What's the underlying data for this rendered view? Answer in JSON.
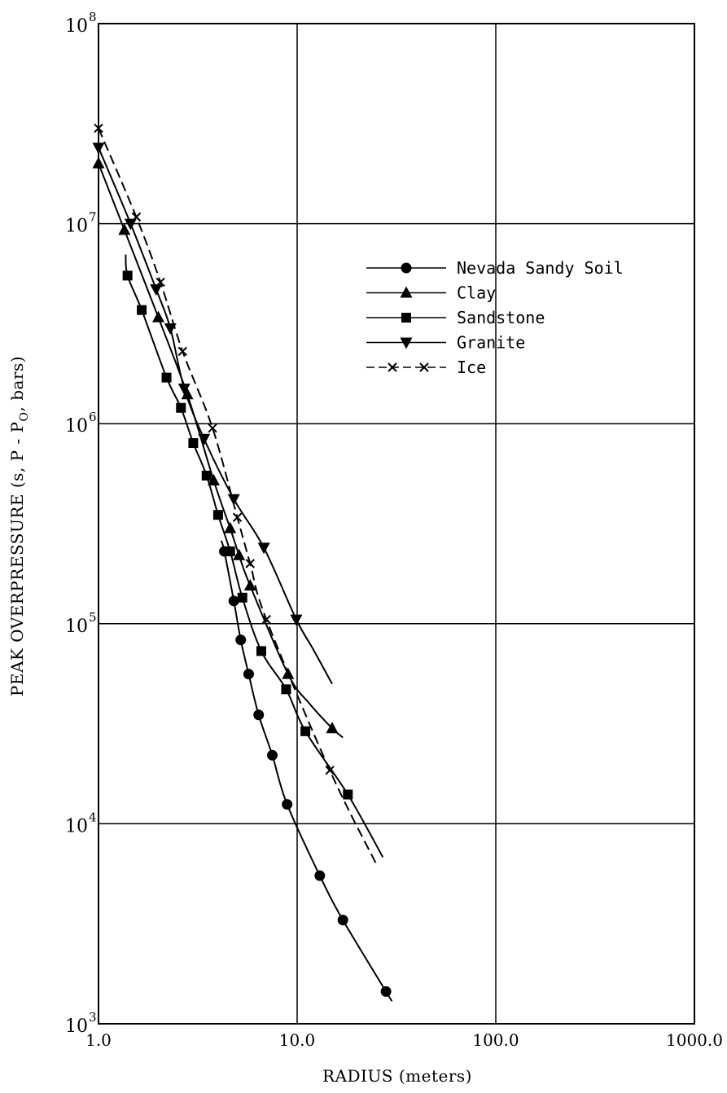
{
  "chart_data": {
    "type": "line",
    "xlabel": "RADIUS (meters)",
    "ylabel": "PEAK OVERPRESSURE (s, P - P",
    "ylabel_sub": "O",
    "ylabel_end": ", bars)",
    "x_scale": "log",
    "y_scale": "log",
    "xlim": [
      1.0,
      1000.0
    ],
    "ylim": [
      1000,
      100000000
    ],
    "x_ticks": [
      {
        "value": 1,
        "label": "1.0"
      },
      {
        "value": 10,
        "label": "10.0"
      },
      {
        "value": 100,
        "label": "100.0"
      },
      {
        "value": 1000,
        "label": "1000.0"
      }
    ],
    "y_ticks": [
      {
        "value": 1000,
        "base": "10",
        "exp": "3"
      },
      {
        "value": 10000,
        "base": "10",
        "exp": "4"
      },
      {
        "value": 100000,
        "base": "10",
        "exp": "5"
      },
      {
        "value": 1000000,
        "base": "10",
        "exp": "6"
      },
      {
        "value": 10000000,
        "base": "10",
        "exp": "7"
      },
      {
        "value": 100000000,
        "base": "10",
        "exp": "8"
      }
    ],
    "grid": true,
    "legend_position": "upper-right",
    "series": [
      {
        "name": "Nevada Sandy Soil",
        "marker": "circle",
        "dashed": false,
        "points": [
          [
            4.3,
            230000
          ],
          [
            4.8,
            130000
          ],
          [
            5.2,
            83000
          ],
          [
            5.7,
            56000
          ],
          [
            6.4,
            35000
          ],
          [
            7.5,
            22000
          ],
          [
            8.9,
            12500
          ],
          [
            13,
            5500
          ],
          [
            17,
            3300
          ],
          [
            28,
            1450
          ]
        ],
        "curve": [
          [
            4.15,
            260000
          ],
          [
            4.3,
            230000
          ],
          [
            4.8,
            130000
          ],
          [
            5.2,
            83000
          ],
          [
            5.7,
            56000
          ],
          [
            6.4,
            35000
          ],
          [
            7.5,
            22000
          ],
          [
            8.9,
            12500
          ],
          [
            13,
            5500
          ],
          [
            17,
            3300
          ],
          [
            28,
            1450
          ],
          [
            30,
            1300
          ]
        ]
      },
      {
        "name": "Clay",
        "marker": "triangle-up",
        "dashed": false,
        "points": [
          [
            1.0,
            20000000
          ],
          [
            1.35,
            9300000
          ],
          [
            2.0,
            3400000
          ],
          [
            2.8,
            1400000
          ],
          [
            3.8,
            520000
          ],
          [
            4.6,
            300000
          ],
          [
            5.1,
            220000
          ],
          [
            5.8,
            155000
          ],
          [
            9.0,
            56000
          ],
          [
            15,
            30000
          ]
        ],
        "curve": [
          [
            1.0,
            20000000
          ],
          [
            1.35,
            9300000
          ],
          [
            2.0,
            3400000
          ],
          [
            2.8,
            1400000
          ],
          [
            3.8,
            520000
          ],
          [
            4.6,
            300000
          ],
          [
            5.1,
            220000
          ],
          [
            5.8,
            155000
          ],
          [
            9.0,
            56000
          ],
          [
            11.5,
            40000
          ],
          [
            15,
            30000
          ],
          [
            17,
            27000
          ]
        ]
      },
      {
        "name": "Sandstone",
        "marker": "square",
        "dashed": false,
        "points": [
          [
            1.4,
            5500000
          ],
          [
            1.65,
            3700000
          ],
          [
            2.2,
            1700000
          ],
          [
            2.6,
            1200000
          ],
          [
            3.0,
            800000
          ],
          [
            3.5,
            550000
          ],
          [
            4.0,
            350000
          ],
          [
            4.6,
            230000
          ],
          [
            5.3,
            135000
          ],
          [
            6.6,
            73000
          ],
          [
            8.8,
            47000
          ],
          [
            11,
            29000
          ],
          [
            18,
            14000
          ]
        ],
        "curve": [
          [
            1.37,
            7000000
          ],
          [
            1.4,
            5500000
          ],
          [
            1.65,
            3700000
          ],
          [
            2.2,
            1700000
          ],
          [
            2.6,
            1200000
          ],
          [
            3.0,
            800000
          ],
          [
            3.5,
            550000
          ],
          [
            4.0,
            350000
          ],
          [
            4.6,
            230000
          ],
          [
            5.3,
            135000
          ],
          [
            6.6,
            73000
          ],
          [
            8.8,
            47000
          ],
          [
            11,
            29000
          ],
          [
            18,
            14000
          ],
          [
            27,
            6800
          ]
        ]
      },
      {
        "name": "Granite",
        "marker": "triangle-down",
        "dashed": false,
        "points": [
          [
            1.0,
            24000000
          ],
          [
            1.45,
            10000000
          ],
          [
            1.95,
            4700000
          ],
          [
            2.3,
            3000000
          ],
          [
            2.7,
            1500000
          ],
          [
            3.4,
            840000
          ],
          [
            4.8,
            420000
          ],
          [
            6.8,
            240000
          ],
          [
            9.9,
            105000
          ]
        ],
        "curve": [
          [
            1.0,
            24000000
          ],
          [
            1.45,
            10000000
          ],
          [
            1.95,
            4700000
          ],
          [
            2.3,
            3000000
          ],
          [
            2.7,
            1500000
          ],
          [
            3.4,
            840000
          ],
          [
            4.8,
            420000
          ],
          [
            6.8,
            240000
          ],
          [
            9.9,
            105000
          ],
          [
            12,
            75000
          ],
          [
            15,
            50000
          ]
        ]
      },
      {
        "name": "Ice",
        "marker": "x",
        "dashed": true,
        "points": [
          [
            1.0,
            30000000
          ],
          [
            1.55,
            10800000
          ],
          [
            2.05,
            5100000
          ],
          [
            2.65,
            2300000
          ],
          [
            3.75,
            950000
          ],
          [
            5.0,
            340000
          ],
          [
            5.8,
            200000
          ],
          [
            7.0,
            105000
          ],
          [
            14.6,
            18500
          ]
        ],
        "curve": [
          [
            1.0,
            30000000
          ],
          [
            1.55,
            10800000
          ],
          [
            2.05,
            5100000
          ],
          [
            2.65,
            2300000
          ],
          [
            3.75,
            950000
          ],
          [
            5.0,
            340000
          ],
          [
            5.8,
            200000
          ],
          [
            7.0,
            105000
          ],
          [
            14.6,
            18500
          ],
          [
            25,
            6300
          ]
        ]
      }
    ]
  }
}
